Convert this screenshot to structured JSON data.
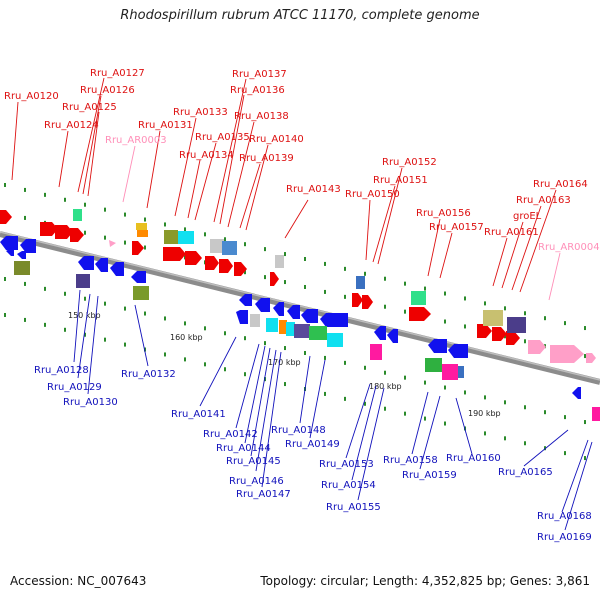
{
  "title": "Rhodospirillum rubrum ATCC 11170, complete genome",
  "footer": {
    "accession": "Accession: NC_007643",
    "summary": "Topology: circular; Length: 4,352,825 bp; Genes: 3,861"
  },
  "scale_ticks": [
    "150 kbp",
    "160 kbp",
    "170 kbp",
    "180 kbp",
    "190 kbp"
  ],
  "colors": {
    "forward_label": "#dd1111",
    "reverse_label": "#1111bb",
    "rna_label": "#ff88bb",
    "backbone": "#8c8c8c"
  },
  "top_labels": [
    "Rru_A0120",
    "Rru_A0127",
    "Rru_A0126",
    "Rru_A0125",
    "Rru_A0124",
    "Rru_AR0003",
    "Rru_A0131",
    "Rru_A0133",
    "Rru_A0137",
    "Rru_A0136",
    "Rru_A0138",
    "Rru_A0135",
    "Rru_A0134",
    "Rru_A0140",
    "Rru_A0139",
    "Rru_A0143",
    "Rru_A0152",
    "Rru_A0151",
    "Rru_A0150",
    "Rru_A0156",
    "Rru_A0157",
    "Rru_A0164",
    "Rru_A0163",
    "groEL",
    "Rru_A0161",
    "Rru_AR0004"
  ],
  "bottom_labels": [
    "Rru_A0128",
    "Rru_A0129",
    "Rru_A0130",
    "Rru_A0132",
    "Rru_A0141",
    "Rru_A0142",
    "Rru_A0144",
    "Rru_A0145",
    "Rru_A0146",
    "Rru_A0147",
    "Rru_A0148",
    "Rru_A0149",
    "Rru_A0153",
    "Rru_A0154",
    "Rru_A0155",
    "Rru_A0158",
    "Rru_A0159",
    "Rru_A0160",
    "Rru_A0165",
    "Rru_A0168",
    "Rru_A0169"
  ]
}
